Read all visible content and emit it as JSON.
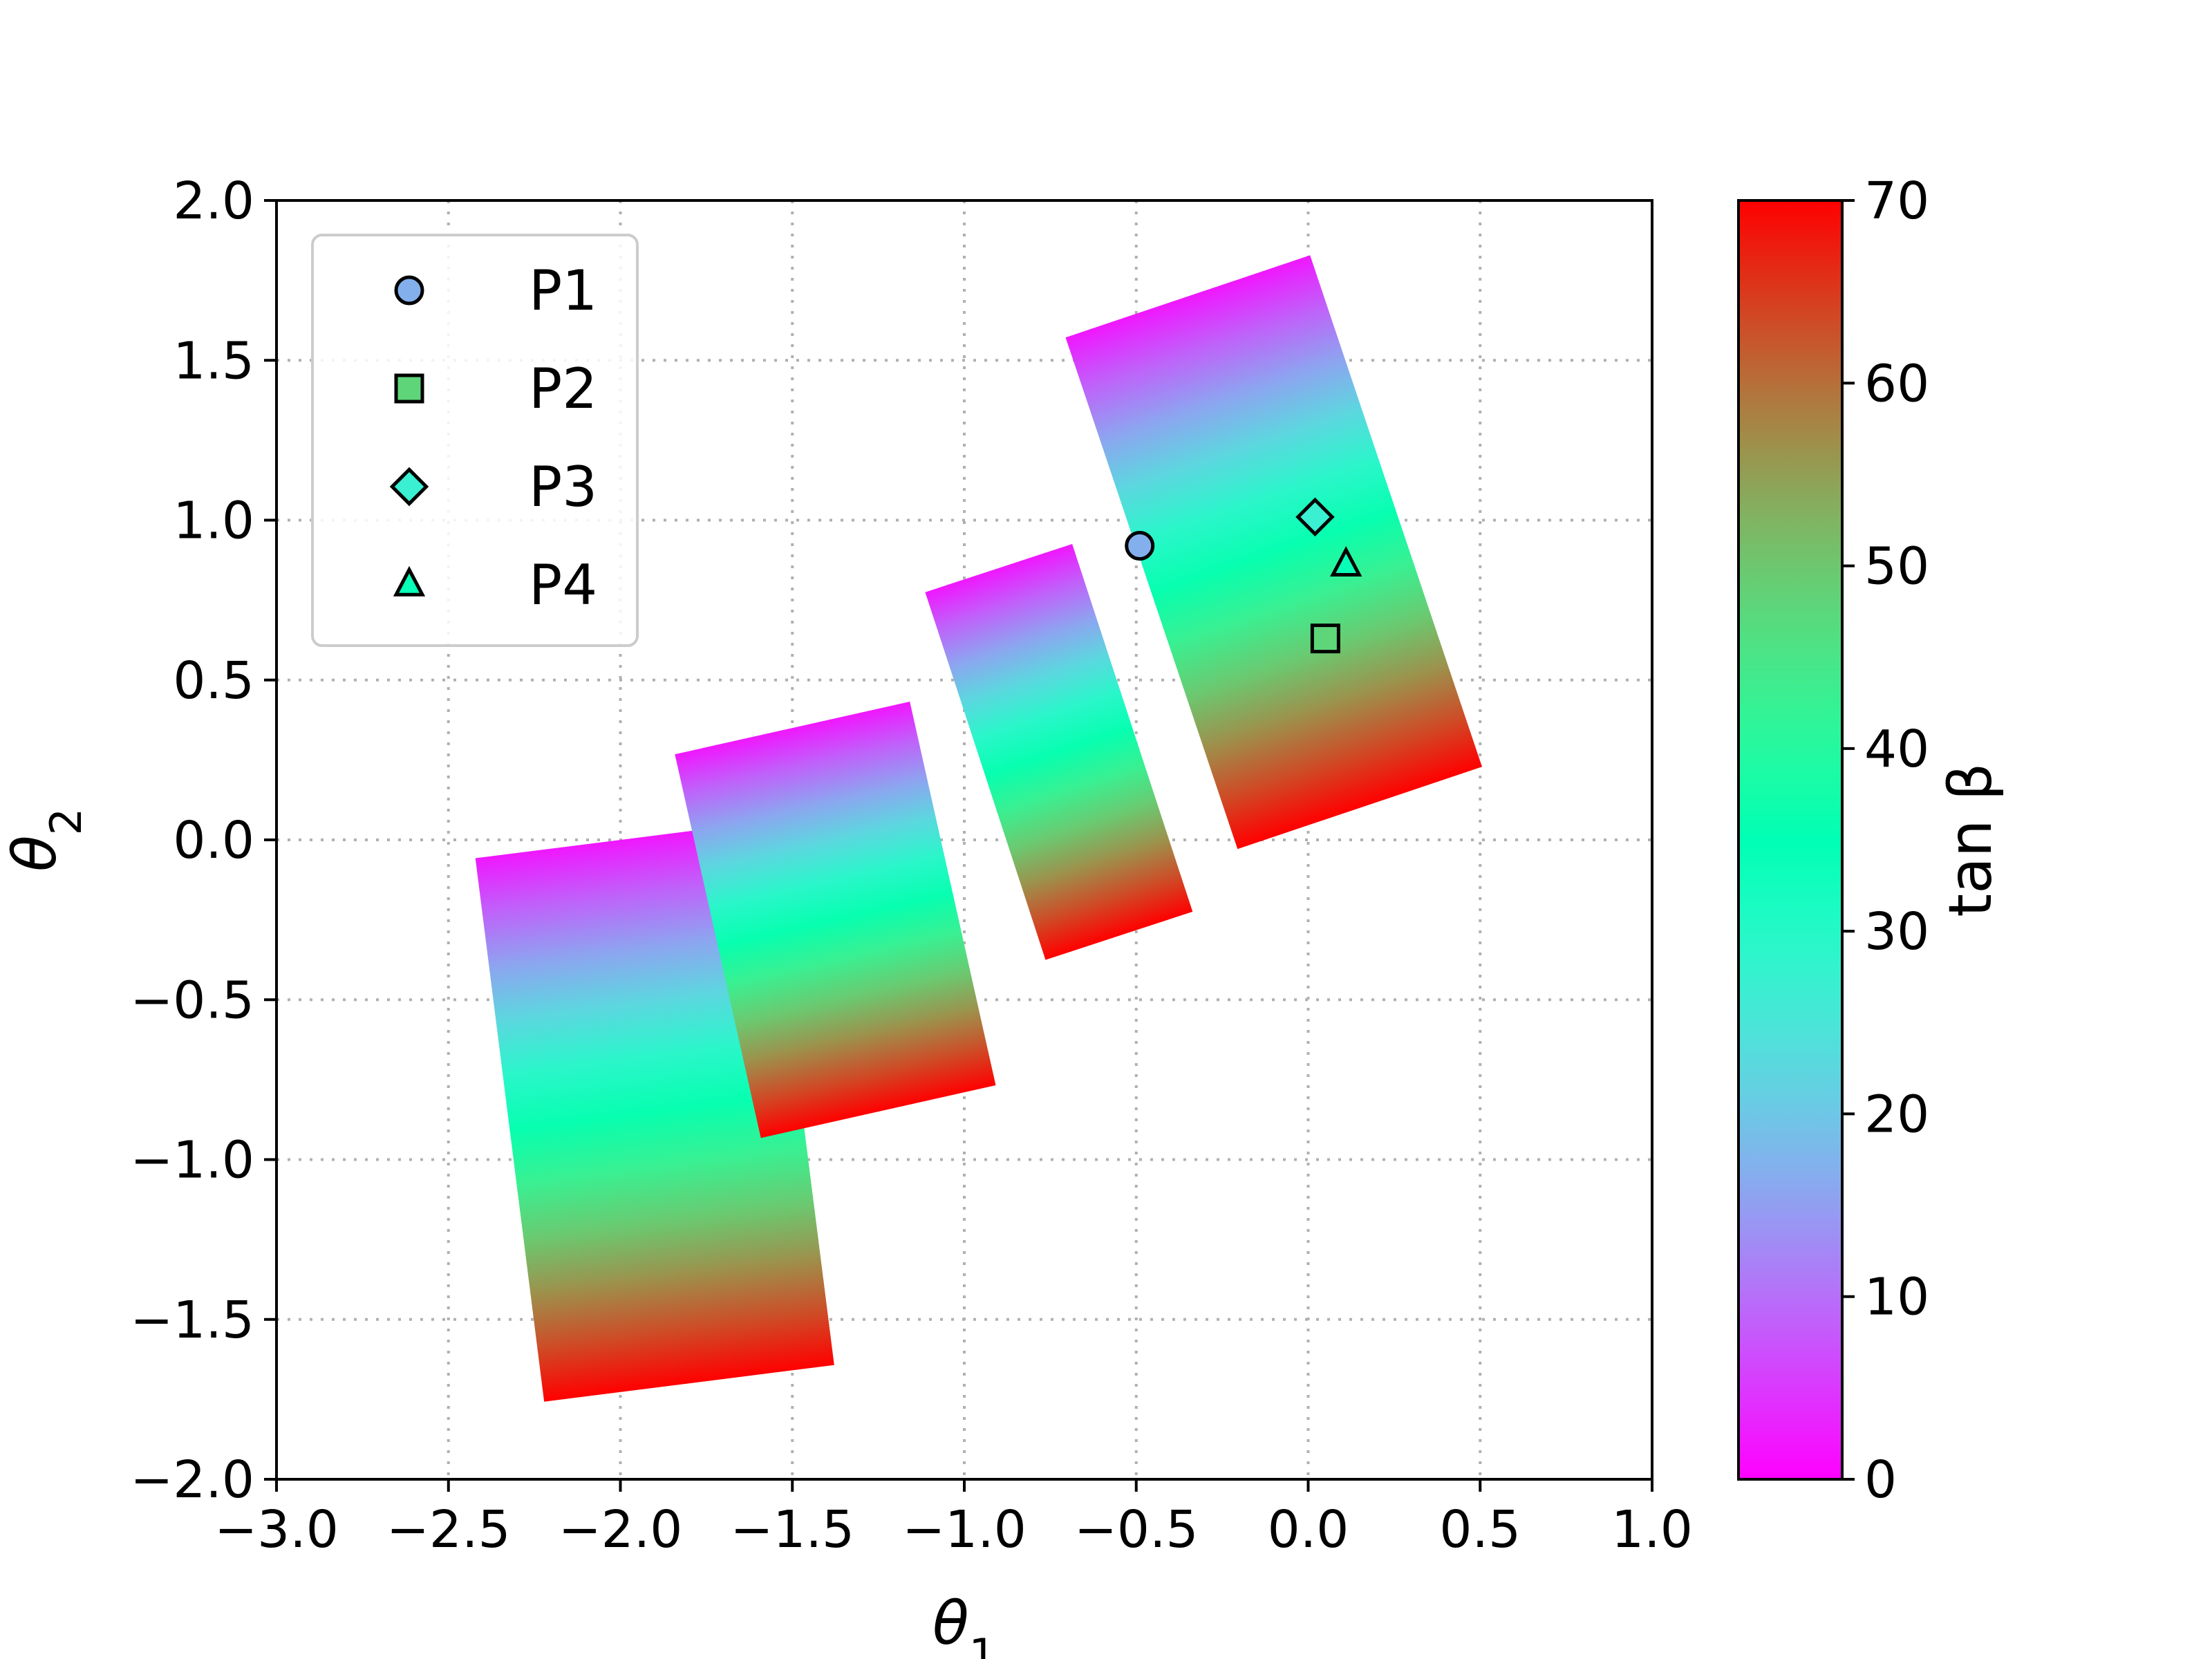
{
  "chart_data": {
    "type": "scatter",
    "title": "",
    "xlabel": "θ",
    "xlabel_sub": "1",
    "ylabel": "θ",
    "ylabel_sub": "2",
    "xlim": [
      -3.0,
      1.0
    ],
    "ylim": [
      -2.0,
      2.0
    ],
    "xticks": [
      "−3.0",
      "−2.5",
      "−2.0",
      "−1.5",
      "−1.0",
      "−0.5",
      "0.0",
      "0.5",
      "1.0"
    ],
    "yticks": [
      "−2.0",
      "−1.5",
      "−1.0",
      "−0.5",
      "0.0",
      "0.5",
      "1.0",
      "1.5",
      "2.0"
    ],
    "grid": true,
    "colormap": "rainbow",
    "colorbar": {
      "label": "tan β",
      "range": [
        0,
        70
      ],
      "ticks": [
        "0",
        "10",
        "20",
        "30",
        "40",
        "50",
        "60",
        "70"
      ]
    },
    "scatter_bands": [
      {
        "x_top": -2.0,
        "y_top": 0.0,
        "x_bottom": -1.8,
        "y_bottom": -1.7,
        "width": 0.85
      },
      {
        "x_top": -1.5,
        "y_top": 0.35,
        "x_bottom": -1.25,
        "y_bottom": -0.85,
        "width": 0.7
      },
      {
        "x_top": -0.9,
        "y_top": 0.85,
        "x_bottom": -0.55,
        "y_bottom": -0.3,
        "width": 0.45
      },
      {
        "x_top": -0.35,
        "y_top": 1.7,
        "x_bottom": 0.15,
        "y_bottom": 0.1,
        "width": 0.75
      }
    ],
    "points": [
      {
        "name": "P1",
        "marker": "circle",
        "x": -0.49,
        "y": 0.92,
        "tanb": 17
      },
      {
        "name": "P2",
        "marker": "square",
        "x": 0.05,
        "y": 0.63,
        "tanb": 48
      },
      {
        "name": "P3",
        "marker": "diamond",
        "x": 0.02,
        "y": 1.01,
        "tanb": 27
      },
      {
        "name": "P4",
        "marker": "triangle",
        "x": 0.11,
        "y": 0.86,
        "tanb": 34
      }
    ],
    "legend": {
      "placement": "top-left",
      "entries": [
        "P1",
        "P2",
        "P3",
        "P4"
      ]
    }
  }
}
